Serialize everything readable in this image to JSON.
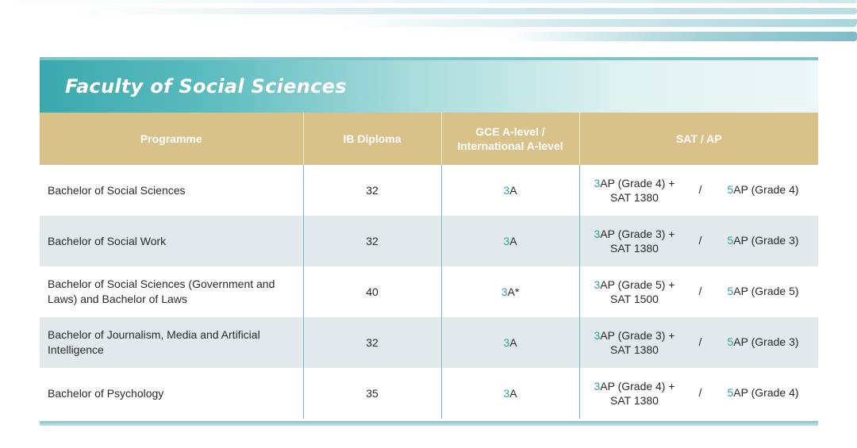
{
  "title": "Faculty of Social Sciences",
  "headers": {
    "programme": "Programme",
    "ib": "IB Diploma",
    "gce_line1": "GCE A-level /",
    "gce_line2": "International A-level",
    "sat": "SAT / AP"
  },
  "rows": [
    {
      "programme": "Bachelor of Social Sciences",
      "ib": "32",
      "gce_num": "3",
      "gce_grade": "A",
      "sat_line1_num": "3",
      "sat_line1_text": "AP (Grade 4) +",
      "sat_line2": "SAT 1380",
      "separator": "/",
      "alt_num": "5",
      "alt_text": "AP (Grade 4)"
    },
    {
      "programme": "Bachelor of Social Work",
      "ib": "32",
      "gce_num": "3",
      "gce_grade": "A",
      "sat_line1_num": "3",
      "sat_line1_text": "AP (Grade 3) +",
      "sat_line2": "SAT 1380",
      "separator": "/",
      "alt_num": "5",
      "alt_text": "AP (Grade 3)"
    },
    {
      "programme": "Bachelor of Social Sciences (Government and Laws) and Bachelor of Laws",
      "ib": "40",
      "gce_num": "3",
      "gce_grade": "A*",
      "sat_line1_num": "3",
      "sat_line1_text": "AP (Grade 5) +",
      "sat_line2": "SAT 1500",
      "separator": "/",
      "alt_num": "5",
      "alt_text": "AP (Grade 5)"
    },
    {
      "programme": "Bachelor of Journalism, Media and Artificial Intelligence",
      "ib": "32",
      "gce_num": "3",
      "gce_grade": "A",
      "sat_line1_num": "3",
      "sat_line1_text": "AP (Grade 3) +",
      "sat_line2": "SAT 1380",
      "separator": "/",
      "alt_num": "5",
      "alt_text": "AP (Grade 3)"
    },
    {
      "programme": "Bachelor of Psychology",
      "ib": "35",
      "gce_num": "3",
      "gce_grade": "A",
      "sat_line1_num": "3",
      "sat_line1_text": "AP (Grade 4) +",
      "sat_line2": "SAT 1380",
      "separator": "/",
      "alt_num": "5",
      "alt_text": "AP (Grade 4)"
    }
  ],
  "colors": {
    "banner": "#3aa9ae",
    "header": "#d8c28a",
    "accent_number": "#2ea3a0",
    "alt_row": "#e2e9ea"
  }
}
